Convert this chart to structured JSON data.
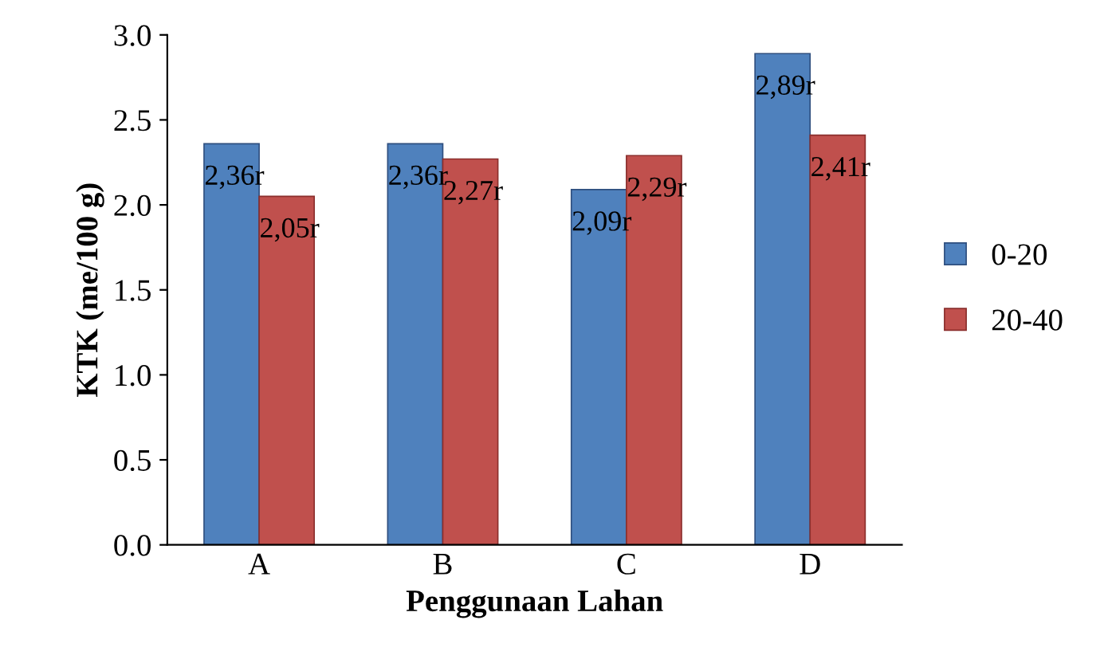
{
  "chart_data": {
    "type": "bar",
    "xlabel": "Penggunaan Lahan",
    "ylabel": "KTK (me/100 g)",
    "categories": [
      "A",
      "B",
      "C",
      "D"
    ],
    "series": [
      {
        "name": "0-20",
        "color": "#4f81bd",
        "values": [
          2.36,
          2.36,
          2.09,
          2.89
        ],
        "value_labels": [
          "2,36r",
          "2,36r",
          "2,09r",
          "2,89r"
        ]
      },
      {
        "name": "20-40",
        "color": "#c0504d",
        "values": [
          2.05,
          2.27,
          2.29,
          2.41
        ],
        "value_labels": [
          "2,05r",
          "2,27r",
          "2,29r",
          "2,41r"
        ]
      }
    ],
    "ylim": [
      0,
      3
    ],
    "yticks": [
      {
        "value": 0,
        "label": "0.0"
      },
      {
        "value": 0.5,
        "label": "0.5"
      },
      {
        "value": 1,
        "label": "1.0"
      },
      {
        "value": 1.5,
        "label": "1.5"
      },
      {
        "value": 2,
        "label": "2.0"
      },
      {
        "value": 2.5,
        "label": "2.5"
      },
      {
        "value": 3,
        "label": "3.0"
      }
    ],
    "grid": false,
    "legend": "right"
  }
}
